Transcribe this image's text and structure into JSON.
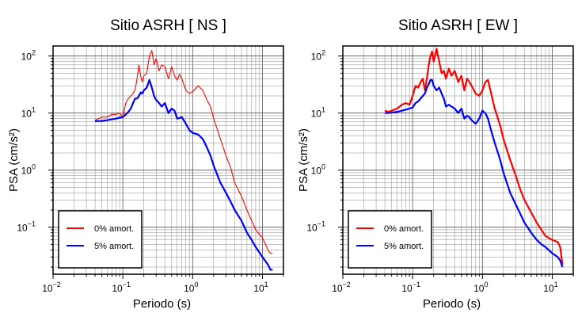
{
  "chart_data": [
    {
      "type": "line",
      "title": "Sitio ASRH [ NS ]",
      "xlabel": "Periodo (s)",
      "ylabel": "PSA (cm/s²)",
      "xscale": "log",
      "yscale": "log",
      "xlim": [
        0.01,
        20
      ],
      "ylim": [
        0.015,
        150
      ],
      "grid": true,
      "xticks": [
        {
          "value": 0.01,
          "base": "10",
          "exp": "−2"
        },
        {
          "value": 0.1,
          "base": "10",
          "exp": "−1"
        },
        {
          "value": 1,
          "base": "10",
          "exp": "0"
        },
        {
          "value": 10,
          "base": "10",
          "exp": "1"
        }
      ],
      "yticks": [
        {
          "value": 0.1,
          "base": "10",
          "exp": "−1"
        },
        {
          "value": 1,
          "base": "10",
          "exp": "0"
        },
        {
          "value": 10,
          "base": "10",
          "exp": "1"
        },
        {
          "value": 100,
          "base": "10",
          "exp": "2"
        }
      ],
      "legend": {
        "placement": "bottom-left"
      },
      "series": [
        {
          "name": "0% amort.",
          "color": "#ff0000",
          "width": 1.1,
          "x": [
            0.04,
            0.05,
            0.06,
            0.07,
            0.08,
            0.09,
            0.1,
            0.11,
            0.12,
            0.13,
            0.14,
            0.15,
            0.16,
            0.17,
            0.18,
            0.19,
            0.2,
            0.22,
            0.24,
            0.26,
            0.28,
            0.3,
            0.33,
            0.36,
            0.4,
            0.45,
            0.5,
            0.55,
            0.6,
            0.65,
            0.7,
            0.8,
            0.9,
            1.0,
            1.2,
            1.4,
            1.6,
            1.8,
            2.0,
            2.5,
            3.0,
            3.5,
            4.0,
            5.0,
            6.0,
            7.0,
            8.0,
            10.0,
            12.0,
            13.0,
            14.0
          ],
          "y": [
            7.5,
            8.5,
            8.5,
            9.5,
            9.5,
            10.0,
            8.5,
            15.0,
            18.0,
            20.0,
            22.0,
            26.0,
            40.0,
            70.0,
            45.0,
            35.0,
            45.0,
            50.0,
            100.0,
            125.0,
            70.0,
            90.0,
            55.0,
            70.0,
            65.0,
            40.0,
            65.0,
            45.0,
            38.0,
            48.0,
            40.0,
            25.0,
            22.0,
            24.0,
            30.0,
            25.0,
            17.0,
            13.0,
            8.0,
            3.5,
            1.8,
            1.1,
            0.6,
            0.35,
            0.2,
            0.13,
            0.09,
            0.065,
            0.04,
            0.035,
            0.035
          ]
        },
        {
          "name": "5% amort.",
          "color": "#0000ff",
          "width": 2.2,
          "x": [
            0.04,
            0.05,
            0.06,
            0.07,
            0.08,
            0.09,
            0.1,
            0.11,
            0.12,
            0.13,
            0.14,
            0.15,
            0.16,
            0.17,
            0.18,
            0.19,
            0.2,
            0.22,
            0.24,
            0.26,
            0.28,
            0.3,
            0.33,
            0.36,
            0.4,
            0.45,
            0.5,
            0.55,
            0.6,
            0.65,
            0.7,
            0.8,
            0.9,
            1.0,
            1.2,
            1.4,
            1.6,
            1.8,
            2.0,
            2.5,
            3.0,
            3.5,
            4.0,
            5.0,
            6.0,
            7.0,
            8.0,
            10.0,
            12.0,
            13.0,
            14.0
          ],
          "y": [
            7.2,
            7.3,
            7.5,
            7.8,
            8.0,
            8.3,
            8.5,
            9.5,
            10.5,
            12.0,
            15.0,
            18.0,
            18.0,
            20.0,
            23.0,
            22.0,
            25.0,
            28.0,
            38.0,
            28.0,
            20.0,
            17.0,
            15.0,
            13.0,
            15.0,
            10.0,
            12.0,
            11.0,
            8.0,
            8.2,
            8.5,
            6.5,
            5.0,
            4.5,
            4.2,
            3.5,
            2.5,
            1.8,
            1.2,
            0.6,
            0.4,
            0.28,
            0.2,
            0.13,
            0.08,
            0.06,
            0.045,
            0.03,
            0.022,
            0.018,
            0.018
          ]
        }
      ]
    },
    {
      "type": "line",
      "title": "Sitio ASRH [ EW ]",
      "xlabel": "Periodo (s)",
      "ylabel": "PSA (cm/s²)",
      "xscale": "log",
      "yscale": "log",
      "xlim": [
        0.01,
        20
      ],
      "ylim": [
        0.015,
        150
      ],
      "grid": true,
      "xticks": [
        {
          "value": 0.01,
          "base": "10",
          "exp": "−2"
        },
        {
          "value": 0.1,
          "base": "10",
          "exp": "−1"
        },
        {
          "value": 1,
          "base": "10",
          "exp": "0"
        },
        {
          "value": 10,
          "base": "10",
          "exp": "1"
        }
      ],
      "yticks": [
        {
          "value": 0.1,
          "base": "10",
          "exp": "−1"
        },
        {
          "value": 1,
          "base": "10",
          "exp": "0"
        },
        {
          "value": 10,
          "base": "10",
          "exp": "1"
        },
        {
          "value": 100,
          "base": "10",
          "exp": "2"
        }
      ],
      "legend": {
        "placement": "bottom-left"
      },
      "series": [
        {
          "name": "0% amort.",
          "color": "#ff0000",
          "width": 2.2,
          "x": [
            0.04,
            0.045,
            0.05,
            0.06,
            0.07,
            0.08,
            0.09,
            0.1,
            0.11,
            0.12,
            0.13,
            0.14,
            0.15,
            0.16,
            0.17,
            0.18,
            0.19,
            0.2,
            0.22,
            0.24,
            0.26,
            0.28,
            0.3,
            0.33,
            0.36,
            0.4,
            0.45,
            0.5,
            0.55,
            0.6,
            0.65,
            0.7,
            0.8,
            0.9,
            1.0,
            1.1,
            1.2,
            1.3,
            1.5,
            1.8,
            2.0,
            2.5,
            3.0,
            3.5,
            4.0,
            5.0,
            6.0,
            7.0,
            8.0,
            10.0,
            12.0,
            13.0,
            14.0
          ],
          "y": [
            11.0,
            10.5,
            11.0,
            12.0,
            14.0,
            15.0,
            14.0,
            20.0,
            30.0,
            28.0,
            35.0,
            40.0,
            25.0,
            40.0,
            70.0,
            100.0,
            120.0,
            80.0,
            135.0,
            80.0,
            50.0,
            55.0,
            40.0,
            60.0,
            45.0,
            55.0,
            35.0,
            45.0,
            25.0,
            40.0,
            35.0,
            30.0,
            22.0,
            20.0,
            25.0,
            35.0,
            38.0,
            25.0,
            12.0,
            6.0,
            3.5,
            1.5,
            0.8,
            0.45,
            0.3,
            0.18,
            0.12,
            0.09,
            0.07,
            0.06,
            0.055,
            0.045,
            0.022
          ]
        },
        {
          "name": "5% amort.",
          "color": "#0000ff",
          "width": 2.2,
          "x": [
            0.04,
            0.045,
            0.05,
            0.06,
            0.07,
            0.08,
            0.09,
            0.1,
            0.11,
            0.12,
            0.13,
            0.14,
            0.15,
            0.16,
            0.17,
            0.18,
            0.19,
            0.2,
            0.22,
            0.24,
            0.26,
            0.28,
            0.3,
            0.33,
            0.36,
            0.4,
            0.45,
            0.5,
            0.55,
            0.6,
            0.65,
            0.7,
            0.8,
            0.9,
            1.0,
            1.1,
            1.2,
            1.3,
            1.5,
            1.8,
            2.0,
            2.5,
            3.0,
            3.5,
            4.0,
            5.0,
            6.0,
            7.0,
            8.0,
            10.0,
            12.0,
            13.0,
            14.0
          ],
          "y": [
            10.0,
            10.0,
            10.2,
            10.5,
            11.0,
            11.5,
            12.0,
            12.5,
            15.0,
            16.0,
            18.0,
            20.0,
            22.0,
            28.0,
            32.0,
            38.0,
            38.0,
            30.0,
            25.0,
            28.0,
            22.0,
            18.0,
            13.0,
            14.0,
            13.0,
            12.0,
            10.0,
            12.0,
            8.0,
            9.0,
            8.5,
            7.5,
            6.5,
            8.0,
            11.0,
            10.0,
            8.0,
            5.5,
            3.0,
            1.5,
            0.9,
            0.4,
            0.25,
            0.17,
            0.12,
            0.08,
            0.06,
            0.05,
            0.045,
            0.035,
            0.03,
            0.026,
            0.02
          ]
        }
      ]
    }
  ]
}
